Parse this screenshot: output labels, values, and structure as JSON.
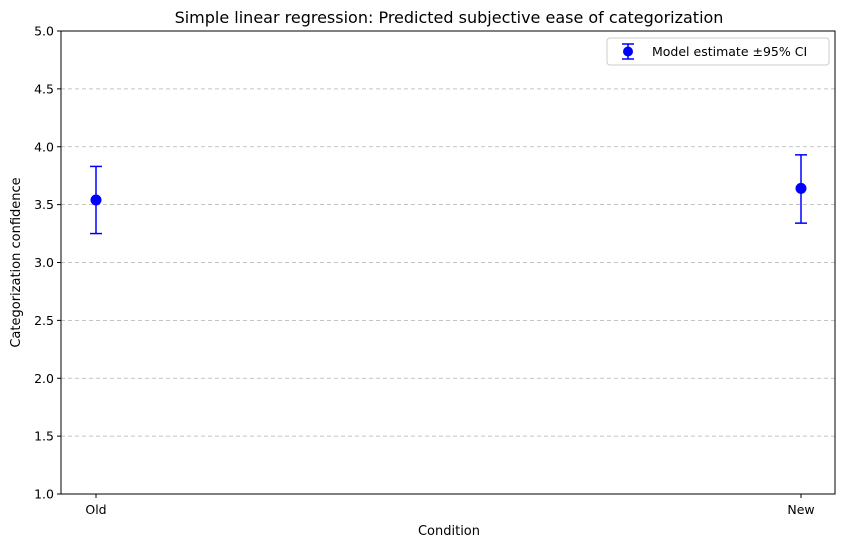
{
  "chart_data": {
    "type": "scatter",
    "title": "Simple linear regression: Predicted subjective ease of categorization",
    "xlabel": "Condition",
    "ylabel": "Categorization confidence",
    "categories": [
      "Old",
      "New"
    ],
    "ylim": [
      1.0,
      5.0
    ],
    "yticks": [
      "1.0",
      "1.5",
      "2.0",
      "2.5",
      "3.0",
      "3.5",
      "4.0",
      "4.5",
      "5.0"
    ],
    "grid": "y-dashed",
    "legend_position": "top-right",
    "series": [
      {
        "name": "Model estimate ±95% CI",
        "color": "#0000ff",
        "points": [
          {
            "x": "Old",
            "y": 3.54,
            "ci_low": 3.25,
            "ci_high": 3.83
          },
          {
            "x": "New",
            "y": 3.64,
            "ci_low": 3.34,
            "ci_high": 3.93
          }
        ]
      }
    ]
  }
}
